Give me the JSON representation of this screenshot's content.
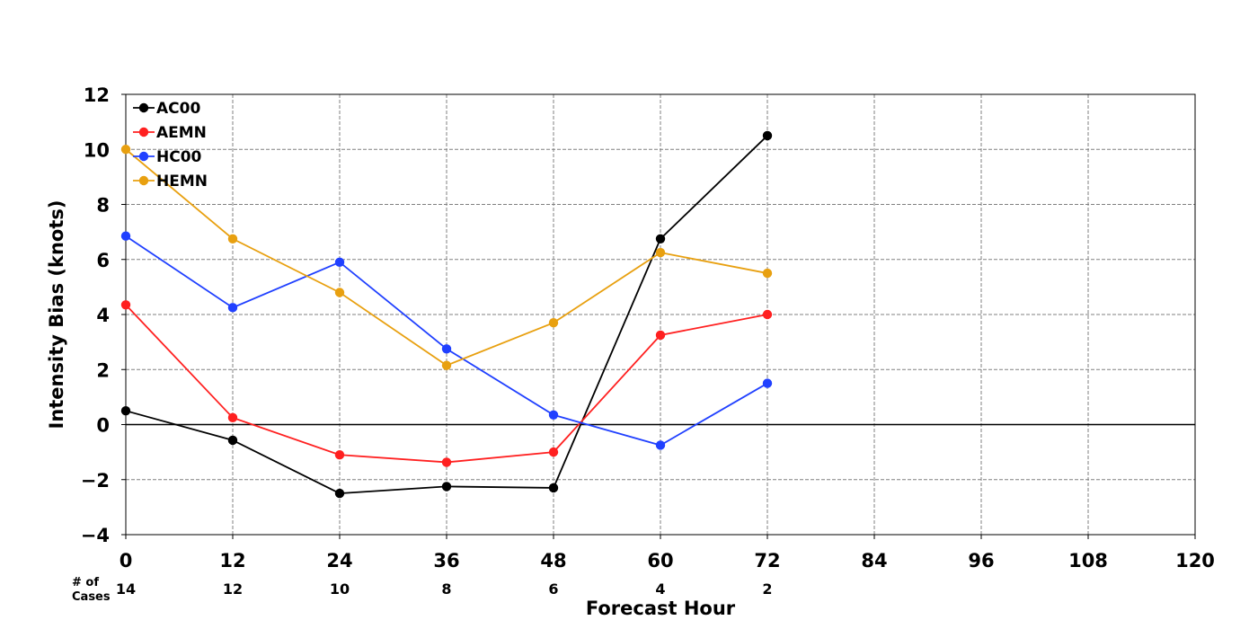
{
  "chart_data": {
    "type": "line",
    "title": "",
    "xlabel": "Forecast Hour",
    "ylabel": "Intensity Bias (knots)",
    "xlim": [
      0,
      120
    ],
    "ylim": [
      -4,
      12
    ],
    "xticks": [
      0,
      12,
      24,
      36,
      48,
      60,
      72,
      84,
      96,
      108,
      120
    ],
    "yticks": [
      -4,
      -2,
      0,
      2,
      4,
      6,
      8,
      10,
      12
    ],
    "ytick_labels": [
      "−4",
      "−2",
      "0",
      "2",
      "4",
      "6",
      "8",
      "10",
      "12"
    ],
    "grid": true,
    "zero_line": true,
    "legend_position": "top-left",
    "x": [
      0,
      12,
      24,
      36,
      48,
      60,
      72
    ],
    "series": [
      {
        "name": "AC00",
        "color": "#000000",
        "values": [
          0.5,
          -0.57,
          -2.5,
          -2.25,
          -2.3,
          6.75,
          10.5
        ]
      },
      {
        "name": "AEMN",
        "color": "#ff2020",
        "values": [
          4.35,
          0.25,
          -1.1,
          -1.37,
          -1.0,
          3.25,
          4.0
        ]
      },
      {
        "name": "HC00",
        "color": "#2040ff",
        "values": [
          6.85,
          4.25,
          5.9,
          2.75,
          0.35,
          -0.75,
          1.5
        ]
      },
      {
        "name": "HEMN",
        "color": "#e8a010",
        "values": [
          10.0,
          6.75,
          4.8,
          2.15,
          3.7,
          6.25,
          5.5
        ]
      }
    ],
    "cases": {
      "label_line1": "# of",
      "label_line2": "Cases",
      "x": [
        0,
        12,
        24,
        36,
        48,
        60,
        72
      ],
      "values": [
        "14",
        "12",
        "10",
        "8",
        "6",
        "4",
        "2"
      ]
    }
  }
}
